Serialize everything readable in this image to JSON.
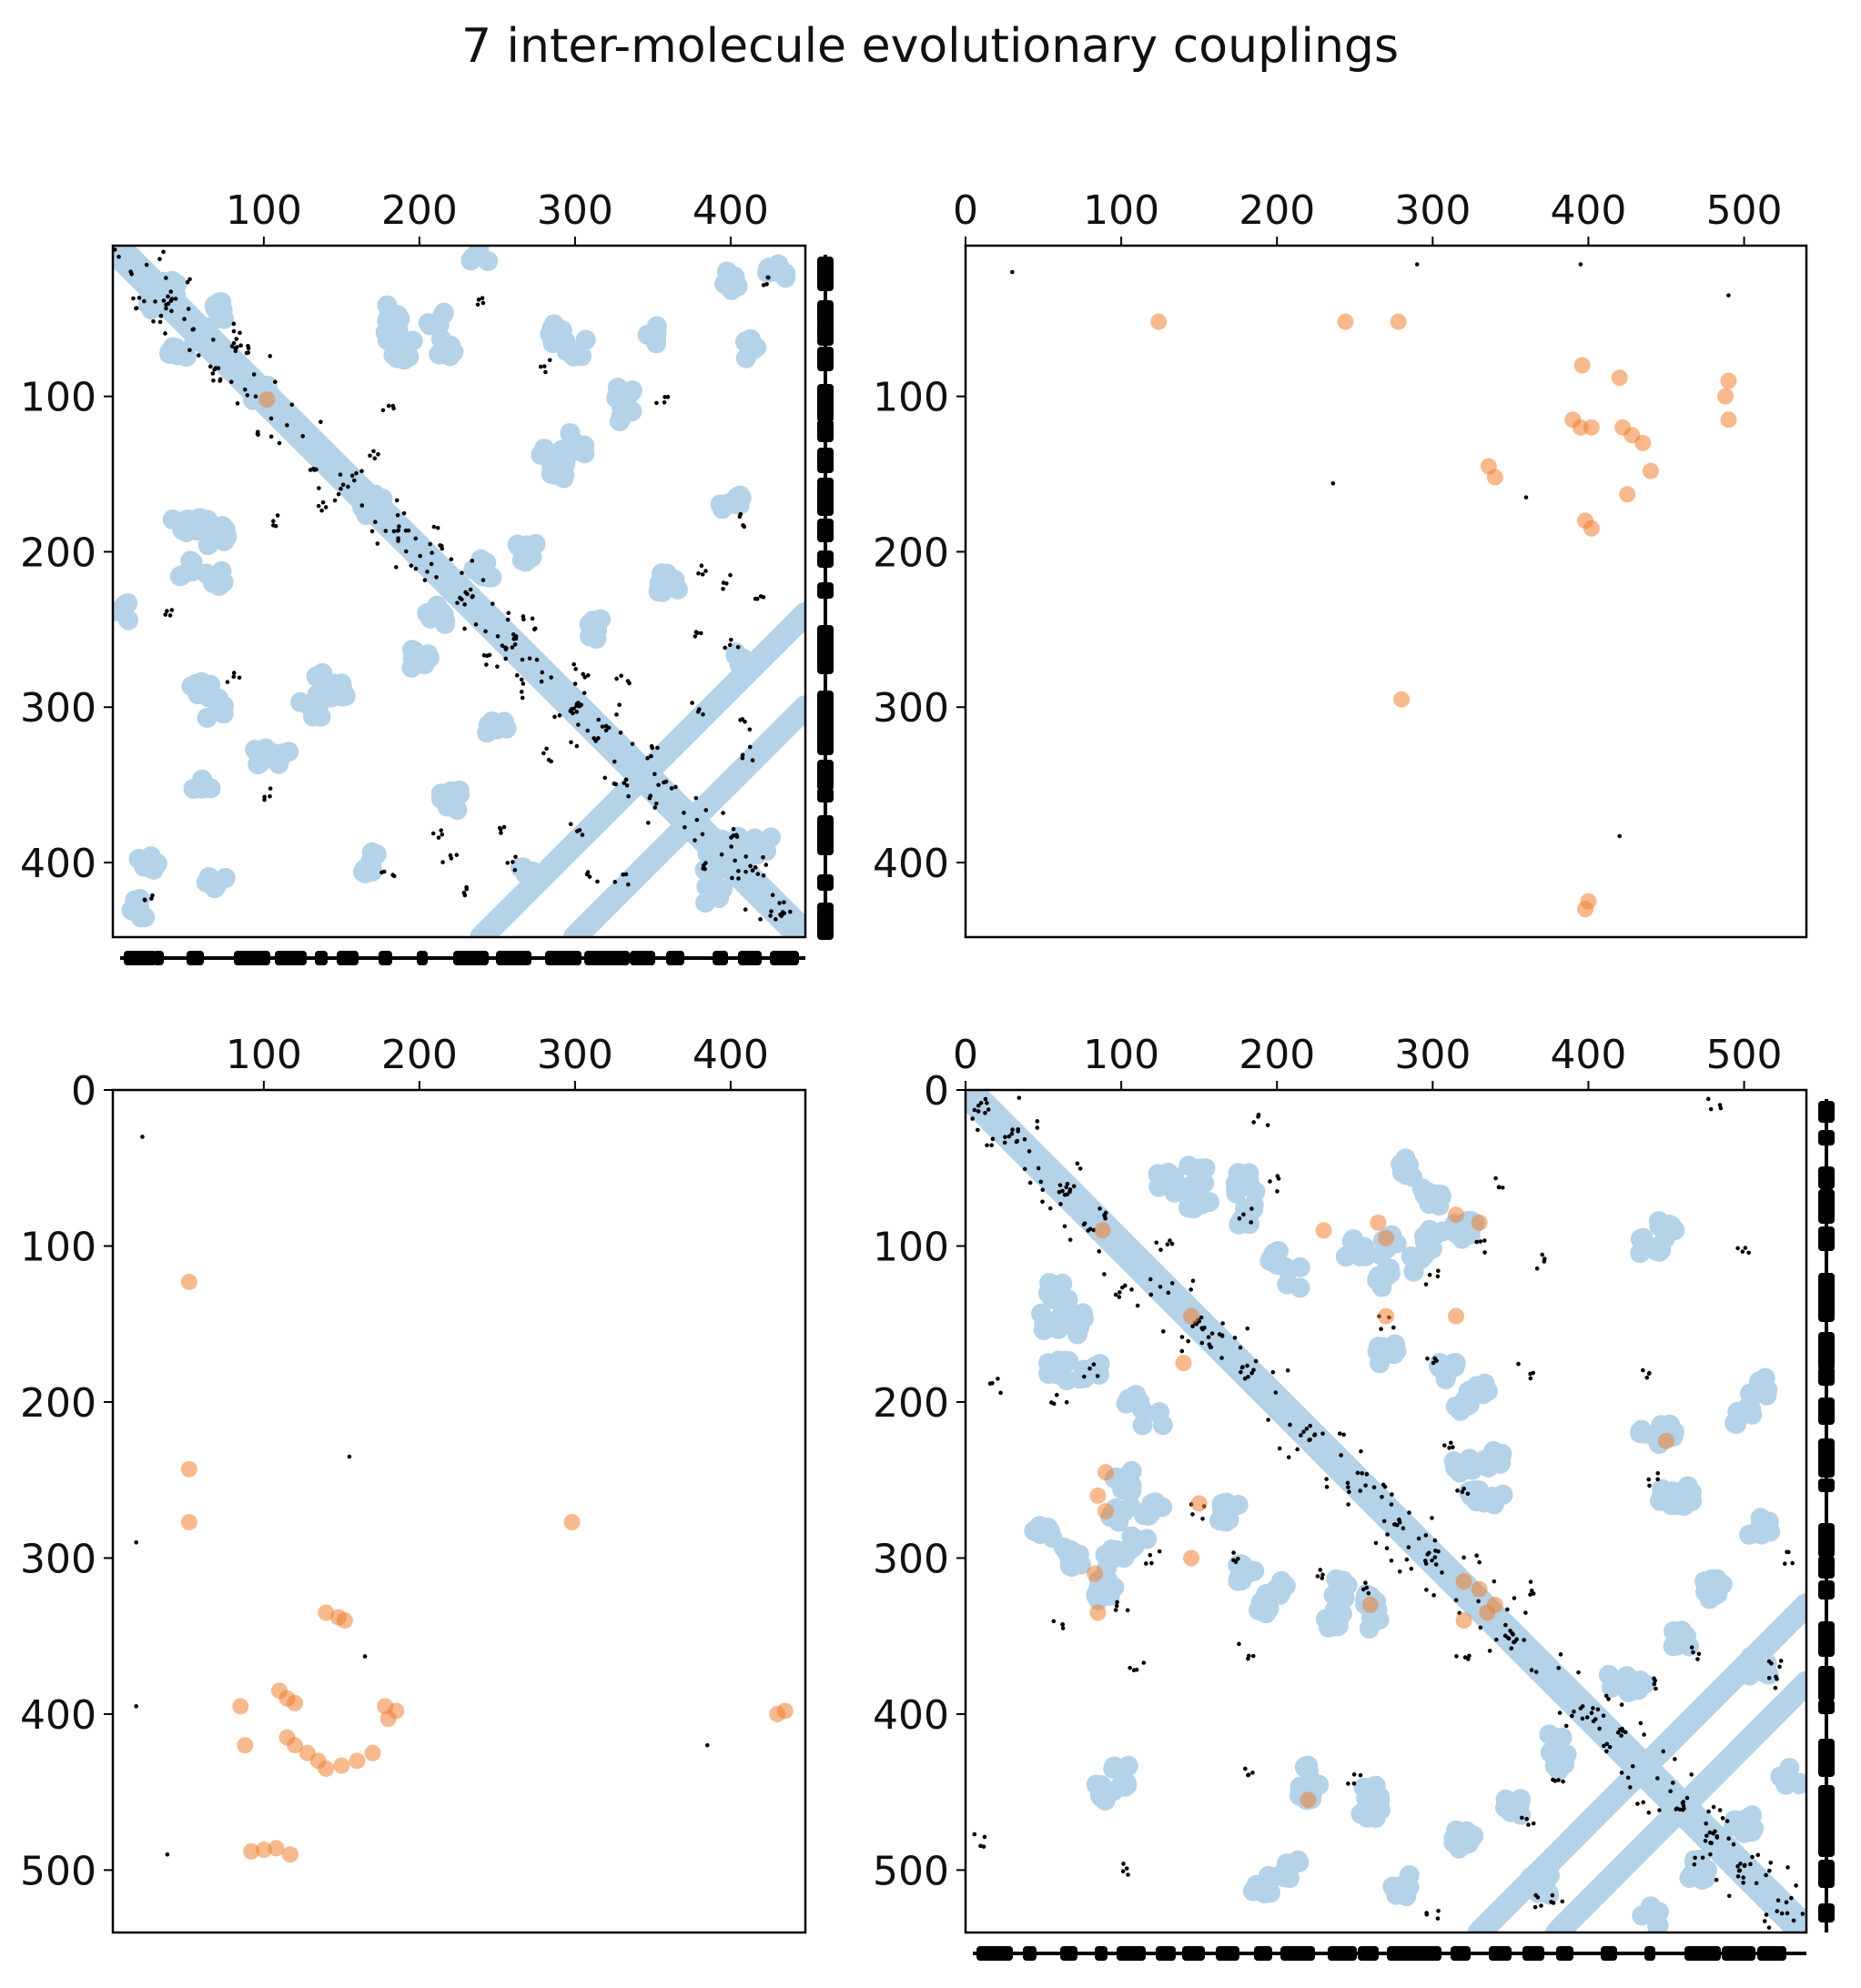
{
  "title": "7 inter-molecule evolutionary couplings",
  "colors": {
    "contact": "#b4d2e8",
    "inter_coupling": "#f08030",
    "intra_coupling": "#000000",
    "axis": "#000000",
    "background": "#ffffff"
  },
  "chart_data": [
    {
      "type": "scatter",
      "panel": "top-left",
      "title": "",
      "xlabel": "",
      "ylabel": "",
      "xlim": [
        3,
        448
      ],
      "ylim": [
        448,
        3
      ],
      "xticks": [
        100,
        200,
        300,
        400
      ],
      "yticks": [
        100,
        200,
        300,
        400
      ],
      "x_axis_position": "top",
      "grid": false,
      "legend": "none",
      "secondary_structure": [
        "right",
        "bottom"
      ],
      "series": [
        {
          "name": "contacts",
          "kind": "diagonal-band",
          "bands": [
            [
              10,
              105
            ],
            [
              105,
              285
            ],
            [
              240,
              448
            ],
            [
              285,
              360
            ],
            [
              360,
              448
            ]
          ]
        },
        {
          "name": "contacts",
          "kind": "blobs",
          "points": [
            [
              30,
              40
            ],
            [
              60,
              60
            ],
            [
              45,
              70
            ],
            [
              100,
              100
            ],
            [
              170,
              170
            ],
            [
              185,
              45
            ],
            [
              215,
              70
            ],
            [
              350,
              60
            ],
            [
              400,
              25
            ],
            [
              415,
              70
            ],
            [
              330,
              100
            ],
            [
              290,
              150
            ],
            [
              300,
              130
            ],
            [
              60,
              180
            ],
            [
              70,
              190
            ],
            [
              50,
              210
            ],
            [
              60,
              290
            ],
            [
              70,
              300
            ],
            [
              110,
              330
            ],
            [
              140,
              285
            ],
            [
              170,
              400
            ],
            [
              390,
              400
            ],
            [
              420,
              390
            ],
            [
              410,
              270
            ],
            [
              360,
              220
            ],
            [
              20,
              430
            ],
            [
              240,
              210
            ],
            [
              200,
              270
            ],
            [
              250,
              310
            ],
            [
              12,
              240
            ]
          ]
        },
        {
          "name": "ECs",
          "kind": "dots",
          "points": [
            [
              40,
              42
            ],
            [
              70,
              78
            ],
            [
              150,
              160
            ],
            [
              170,
              140
            ],
            [
              190,
              183
            ],
            [
              230,
              228
            ],
            [
              258,
              258
            ],
            [
              270,
              245
            ],
            [
              300,
              300
            ],
            [
              310,
              410
            ],
            [
              320,
              310
            ],
            [
              330,
              280
            ],
            [
              345,
              330
            ],
            [
              360,
              350
            ],
            [
              380,
              210
            ],
            [
              400,
              260
            ],
            [
              410,
              330
            ],
            [
              420,
              230
            ],
            [
              430,
              430
            ],
            [
              25,
              425
            ],
            [
              100,
              355
            ],
            [
              180,
              410
            ],
            [
              250,
              380
            ],
            [
              300,
              380
            ],
            [
              400,
              380
            ],
            [
              220,
              400
            ],
            [
              110,
              180
            ],
            [
              90,
              70
            ],
            [
              240,
              40
            ],
            [
              280,
              80
            ]
          ]
        },
        {
          "name": "inter-molecule ECs",
          "kind": "orange",
          "points": [
            [
              102,
              102
            ]
          ]
        }
      ]
    },
    {
      "type": "scatter",
      "panel": "top-right",
      "title": "",
      "xlabel": "",
      "ylabel": "",
      "xlim": [
        0,
        540
      ],
      "ylim": [
        448,
        3
      ],
      "xticks": [
        0,
        100,
        200,
        300,
        400,
        500
      ],
      "yticks": [
        100,
        200,
        300,
        400
      ],
      "x_axis_position": "top",
      "grid": false,
      "legend": "none",
      "series": [
        {
          "name": "inter-molecule ECs",
          "kind": "orange",
          "points": [
            [
              124,
              52
            ],
            [
              244,
              52
            ],
            [
              278,
              52
            ],
            [
              390,
              115
            ],
            [
              395,
              120
            ],
            [
              402,
              120
            ],
            [
              396,
              80
            ],
            [
              420,
              88
            ],
            [
              422,
              120
            ],
            [
              428,
              125
            ],
            [
              435,
              130
            ],
            [
              440,
              148
            ],
            [
              425,
              163
            ],
            [
              336,
              145
            ],
            [
              340,
              152
            ],
            [
              398,
              180
            ],
            [
              402,
              185
            ],
            [
              490,
              90
            ],
            [
              488,
              100
            ],
            [
              490,
              115
            ],
            [
              280,
              295
            ],
            [
              400,
              425
            ],
            [
              398,
              430
            ]
          ]
        },
        {
          "name": "ECs",
          "kind": "dots",
          "points": [
            [
              30,
              20
            ],
            [
              290,
              15
            ],
            [
              395,
              15
            ],
            [
              490,
              35
            ],
            [
              236,
              156
            ],
            [
              360,
              165
            ],
            [
              420,
              383
            ]
          ]
        }
      ]
    },
    {
      "type": "scatter",
      "panel": "bottom-left",
      "title": "",
      "xlabel": "",
      "ylabel": "",
      "xlim": [
        3,
        448
      ],
      "ylim": [
        540,
        0
      ],
      "xticks": [
        100,
        200,
        300,
        400
      ],
      "yticks": [
        0,
        100,
        200,
        300,
        400,
        500
      ],
      "x_axis_position": "top",
      "grid": false,
      "legend": "none",
      "series": [
        {
          "name": "inter-molecule ECs",
          "kind": "orange",
          "points": [
            [
              52,
              123
            ],
            [
              52,
              243
            ],
            [
              52,
              277
            ],
            [
              298,
              277
            ],
            [
              140,
              335
            ],
            [
              148,
              338
            ],
            [
              152,
              340
            ],
            [
              110,
              385
            ],
            [
              115,
              390
            ],
            [
              120,
              393
            ],
            [
              85,
              395
            ],
            [
              115,
              415
            ],
            [
              120,
              420
            ],
            [
              128,
              425
            ],
            [
              135,
              430
            ],
            [
              140,
              435
            ],
            [
              150,
              433
            ],
            [
              160,
              430
            ],
            [
              170,
              425
            ],
            [
              178,
              395
            ],
            [
              180,
              403
            ],
            [
              185,
              398
            ],
            [
              88,
              420
            ],
            [
              92,
              488
            ],
            [
              100,
              487
            ],
            [
              108,
              486
            ],
            [
              117,
              490
            ],
            [
              430,
              400
            ],
            [
              435,
              398
            ]
          ]
        },
        {
          "name": "ECs",
          "kind": "dots",
          "points": [
            [
              22,
              30
            ],
            [
              155,
              235
            ],
            [
              18,
              290
            ],
            [
              165,
              363
            ],
            [
              18,
              395
            ],
            [
              38,
              490
            ],
            [
              385,
              420
            ]
          ]
        }
      ]
    },
    {
      "type": "scatter",
      "panel": "bottom-right",
      "title": "",
      "xlabel": "",
      "ylabel": "",
      "xlim": [
        0,
        540
      ],
      "ylim": [
        540,
        0
      ],
      "xticks": [
        0,
        100,
        200,
        300,
        400,
        500
      ],
      "yticks": [
        0,
        100,
        200,
        300,
        400,
        500
      ],
      "x_axis_position": "top",
      "grid": false,
      "legend": "none",
      "secondary_structure": [
        "right",
        "bottom"
      ],
      "series": [
        {
          "name": "contacts",
          "kind": "diagonal-band",
          "bands": [
            [
              0,
              100
            ],
            [
              100,
              240
            ],
            [
              240,
              330
            ],
            [
              330,
              400
            ],
            [
              400,
              540
            ]
          ]
        },
        {
          "name": "contacts",
          "kind": "blobs",
          "points": [
            [
              60,
              130
            ],
            [
              70,
              150
            ],
            [
              80,
              180
            ],
            [
              130,
              60
            ],
            [
              150,
              55
            ],
            [
              180,
              60
            ],
            [
              200,
              110
            ],
            [
              210,
              120
            ],
            [
              250,
              100
            ],
            [
              270,
              120
            ],
            [
              300,
              95
            ],
            [
              320,
              90
            ],
            [
              330,
              190
            ],
            [
              320,
              200
            ],
            [
              340,
              235
            ],
            [
              330,
              260
            ],
            [
              50,
              280
            ],
            [
              70,
              300
            ],
            [
              100,
              270
            ],
            [
              110,
              290
            ],
            [
              170,
              270
            ],
            [
              180,
              310
            ],
            [
              240,
              320
            ],
            [
              260,
              340
            ],
            [
              440,
              100
            ],
            [
              450,
              220
            ],
            [
              460,
              260
            ],
            [
              500,
              210
            ],
            [
              420,
              380
            ],
            [
              510,
              370
            ],
            [
              380,
              430
            ],
            [
              350,
              460
            ],
            [
              320,
              480
            ],
            [
              470,
              500
            ],
            [
              440,
              440
            ],
            [
              90,
              450
            ],
            [
              220,
              440
            ],
            [
              260,
              450
            ],
            [
              280,
              510
            ],
            [
              190,
              510
            ],
            [
              370,
              510
            ],
            [
              530,
              440
            ]
          ]
        },
        {
          "name": "ECs",
          "kind": "dots",
          "points": [
            [
              10,
              10
            ],
            [
              30,
              30
            ],
            [
              65,
              65
            ],
            [
              80,
              90
            ],
            [
              150,
              150
            ],
            [
              160,
              160
            ],
            [
              180,
              180
            ],
            [
              220,
              220
            ],
            [
              250,
              255
            ],
            [
              280,
              275
            ],
            [
              300,
              300
            ],
            [
              350,
              350
            ],
            [
              400,
              400
            ],
            [
              420,
              410
            ],
            [
              440,
              380
            ],
            [
              460,
              460
            ],
            [
              480,
              480
            ],
            [
              500,
              500
            ],
            [
              380,
              520
            ],
            [
              520,
              370
            ],
            [
              100,
              130
            ],
            [
              80,
              180
            ],
            [
              120,
              300
            ],
            [
              360,
              320
            ],
            [
              300,
              170
            ],
            [
              230,
              310
            ],
            [
              260,
              320
            ],
            [
              200,
              60
            ],
            [
              440,
              180
            ],
            [
              500,
              100
            ],
            [
              60,
              340
            ],
            [
              110,
              370
            ],
            [
              180,
              360
            ],
            [
              470,
              360
            ],
            [
              20,
              190
            ],
            [
              250,
              440
            ],
            [
              150,
              270
            ],
            [
              330,
              100
            ],
            [
              530,
              300
            ],
            [
              10,
              480
            ]
          ]
        },
        {
          "name": "inter-molecule ECs",
          "kind": "orange",
          "points": [
            [
              88,
              90
            ],
            [
              230,
              90
            ],
            [
              265,
              85
            ],
            [
              270,
              95
            ],
            [
              315,
              80
            ],
            [
              330,
              85
            ],
            [
              270,
              145
            ],
            [
              315,
              145
            ],
            [
              140,
              175
            ],
            [
              145,
              145
            ],
            [
              90,
              245
            ],
            [
              85,
              260
            ],
            [
              90,
              270
            ],
            [
              150,
              265
            ],
            [
              145,
              300
            ],
            [
              83,
              310
            ],
            [
              85,
              335
            ],
            [
              450,
              225
            ],
            [
              320,
              315
            ],
            [
              330,
              320
            ],
            [
              335,
              335
            ],
            [
              340,
              330
            ],
            [
              320,
              340
            ],
            [
              220,
              455
            ],
            [
              260,
              330
            ]
          ]
        }
      ]
    }
  ]
}
